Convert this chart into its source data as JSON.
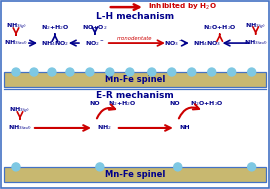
{
  "bg_color": "#ffffff",
  "border_color": "#4472c4",
  "title_inhibited_color": "#cc0000",
  "lh_title": "L-H mechanism",
  "lh_title_color": "#00008b",
  "er_title": "E-R mechanism",
  "er_title_color": "#00008b",
  "spinel_color": "#c8b870",
  "spinel_border": "#4472c4",
  "spinel_text": "Mn-Fe spinel",
  "spinel_text_color": "#00008b",
  "bubble_color": "#7ec8e3",
  "arrow_red": "#cc0000",
  "arrow_blue": "#00008b",
  "text_blue": "#00008b"
}
